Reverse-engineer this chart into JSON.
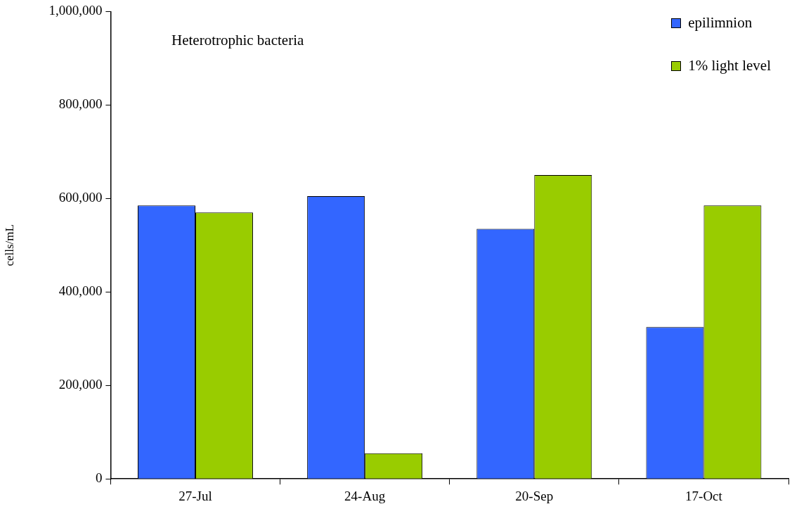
{
  "chart_data": {
    "type": "bar",
    "ylabel": "cells/mL",
    "annotations": [
      "Heterotrophic bacteria"
    ],
    "categories": [
      "27-Jul",
      "24-Aug",
      "20-Sep",
      "17-Oct"
    ],
    "series": [
      {
        "name": "epilimnion",
        "color": "#3366ff",
        "values": [
          585000,
          605000,
          535000,
          325000
        ]
      },
      {
        "name": "1% light level",
        "color": "#99cc00",
        "values": [
          570000,
          55000,
          650000,
          585000
        ]
      }
    ],
    "ylim": [
      0,
      1000000
    ],
    "yticks": [
      0,
      {
        "value": 200000,
        "label": "200,000"
      },
      {
        "value": 400000,
        "label": "400,000"
      },
      {
        "value": 600000,
        "label": "600,000"
      },
      {
        "value": 800000,
        "label": "800,000"
      },
      {
        "value": 1000000,
        "label": "1,000,000"
      }
    ],
    "grid": false,
    "legend": "top right"
  }
}
